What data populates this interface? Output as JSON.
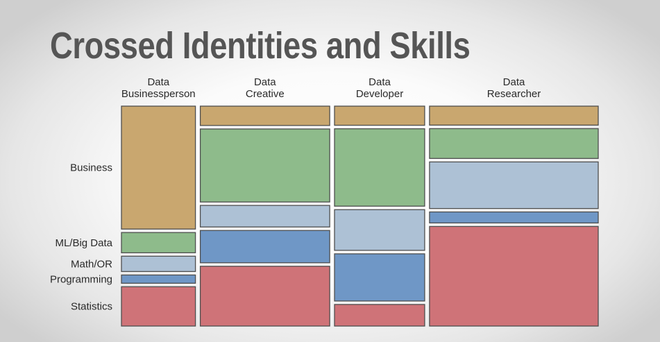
{
  "title": "Crossed Identities and Skills",
  "chart_data": {
    "type": "mosaic",
    "title": "Crossed Identities and Skills",
    "columns": [
      {
        "label_lines": [
          "Data",
          "Businessperson"
        ],
        "width_share": 0.16,
        "segments": [
          0.553,
          0.091,
          0.069,
          0.037,
          0.177
        ]
      },
      {
        "label_lines": [
          "Data",
          "Creative"
        ],
        "width_share": 0.28,
        "segments": [
          0.086,
          0.325,
          0.096,
          0.144,
          0.266
        ]
      },
      {
        "label_lines": [
          "Data",
          "Developer"
        ],
        "width_share": 0.195,
        "segments": [
          0.086,
          0.348,
          0.183,
          0.212,
          0.097
        ]
      },
      {
        "label_lines": [
          "Data",
          "Researcher"
        ],
        "width_share": 0.365,
        "segments": [
          0.086,
          0.135,
          0.211,
          0.05,
          0.451
        ]
      }
    ],
    "rows": [
      "Business",
      "ML/Big Data",
      "Math/OR",
      "Programming",
      "Statistics"
    ],
    "row_labels": [
      "Business",
      "ML/Big Data",
      "Math/OR",
      "Programming",
      "Statistics"
    ],
    "colors": [
      "#c9a76f",
      "#8ebb8b",
      "#adc1d5",
      "#6f97c6",
      "#cf7378"
    ],
    "x_axis": "none",
    "y_axis": "none",
    "legend": "none",
    "grid": false
  }
}
